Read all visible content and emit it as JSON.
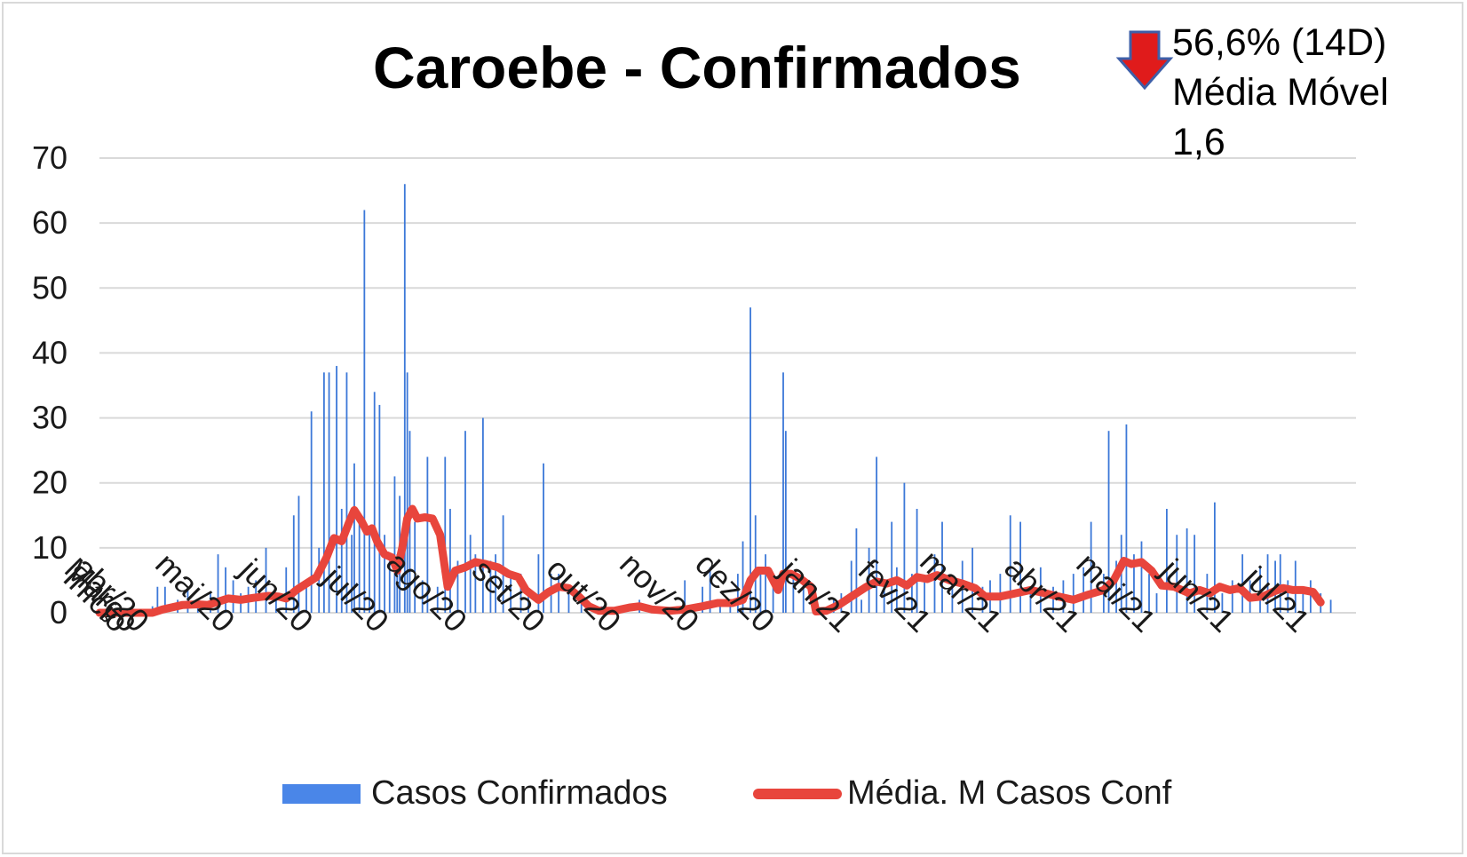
{
  "colors": {
    "bar": "#3c78d8",
    "line": "#e8453c",
    "grid": "#d9d9d9",
    "arrow_fill": "#e01b1b",
    "arrow_stroke": "#3e5fa8"
  },
  "chart_data": {
    "type": "bar+line",
    "title": "Caroebe - Confirmados",
    "annotation": {
      "arrow": "down-arrow",
      "lines": [
        "56,6% (14D)",
        "Média Móvel",
        "1,6"
      ]
    },
    "xlabel": "",
    "ylabel": "",
    "ylim": [
      0,
      70
    ],
    "yticks": [
      0,
      10,
      20,
      30,
      40,
      50,
      60,
      70
    ],
    "grid": true,
    "legend_position": "bottom",
    "x_start": "2020-03-20",
    "x_end": "2021-07-31",
    "x_ticks": [
      {
        "date": "2020-03-20",
        "label": "Início"
      },
      {
        "date": "2020-03-24",
        "label": "Março"
      },
      {
        "date": "2020-03-28",
        "label": "abr/20"
      },
      {
        "date": "2020-05-01",
        "label": "mai/20"
      },
      {
        "date": "2020-06-01",
        "label": "jun/20"
      },
      {
        "date": "2020-07-01",
        "label": "jul/20"
      },
      {
        "date": "2020-08-01",
        "label": "ago/20"
      },
      {
        "date": "2020-09-01",
        "label": "set/20"
      },
      {
        "date": "2020-10-01",
        "label": "out/20"
      },
      {
        "date": "2020-11-01",
        "label": "nov/20"
      },
      {
        "date": "2020-12-01",
        "label": "dez/20"
      },
      {
        "date": "2021-01-01",
        "label": "jan/21"
      },
      {
        "date": "2021-02-01",
        "label": "fev/21"
      },
      {
        "date": "2021-03-01",
        "label": "mar/21"
      },
      {
        "date": "2021-04-01",
        "label": "abr/21"
      },
      {
        "date": "2021-05-01",
        "label": "mai/21"
      },
      {
        "date": "2021-06-01",
        "label": "jun/21"
      },
      {
        "date": "2021-07-01",
        "label": "jul/21"
      }
    ],
    "series": [
      {
        "name": "Casos Confirmados",
        "type": "bar",
        "points": [
          [
            "2020-04-10",
            1
          ],
          [
            "2020-04-12",
            4
          ],
          [
            "2020-04-15",
            4
          ],
          [
            "2020-04-20",
            2
          ],
          [
            "2020-04-24",
            4
          ],
          [
            "2020-04-28",
            2
          ],
          [
            "2020-05-03",
            3
          ],
          [
            "2020-05-06",
            9
          ],
          [
            "2020-05-09",
            7
          ],
          [
            "2020-05-12",
            5
          ],
          [
            "2020-05-15",
            3
          ],
          [
            "2020-05-18",
            4
          ],
          [
            "2020-05-21",
            5
          ],
          [
            "2020-05-25",
            10
          ],
          [
            "2020-05-29",
            3
          ],
          [
            "2020-06-02",
            7
          ],
          [
            "2020-06-05",
            15
          ],
          [
            "2020-06-07",
            18
          ],
          [
            "2020-06-10",
            5
          ],
          [
            "2020-06-12",
            31
          ],
          [
            "2020-06-15",
            10
          ],
          [
            "2020-06-17",
            37
          ],
          [
            "2020-06-19",
            37
          ],
          [
            "2020-06-22",
            38
          ],
          [
            "2020-06-24",
            16
          ],
          [
            "2020-06-26",
            37
          ],
          [
            "2020-06-28",
            12
          ],
          [
            "2020-06-29",
            23
          ],
          [
            "2020-07-01",
            14
          ],
          [
            "2020-07-03",
            62
          ],
          [
            "2020-07-05",
            13
          ],
          [
            "2020-07-07",
            34
          ],
          [
            "2020-07-09",
            32
          ],
          [
            "2020-07-11",
            12
          ],
          [
            "2020-07-13",
            8
          ],
          [
            "2020-07-15",
            21
          ],
          [
            "2020-07-16",
            9
          ],
          [
            "2020-07-17",
            18
          ],
          [
            "2020-07-19",
            66
          ],
          [
            "2020-07-20",
            37
          ],
          [
            "2020-07-21",
            28
          ],
          [
            "2020-07-23",
            14
          ],
          [
            "2020-07-26",
            5
          ],
          [
            "2020-07-28",
            24
          ],
          [
            "2020-08-01",
            4
          ],
          [
            "2020-08-04",
            24
          ],
          [
            "2020-08-06",
            16
          ],
          [
            "2020-08-09",
            8
          ],
          [
            "2020-08-12",
            28
          ],
          [
            "2020-08-14",
            12
          ],
          [
            "2020-08-16",
            9
          ],
          [
            "2020-08-19",
            30
          ],
          [
            "2020-08-22",
            8
          ],
          [
            "2020-08-24",
            9
          ],
          [
            "2020-08-27",
            15
          ],
          [
            "2020-08-30",
            6
          ],
          [
            "2020-09-03",
            6
          ],
          [
            "2020-09-06",
            3
          ],
          [
            "2020-09-10",
            9
          ],
          [
            "2020-09-12",
            23
          ],
          [
            "2020-09-15",
            6
          ],
          [
            "2020-09-18",
            6
          ],
          [
            "2020-09-22",
            3
          ],
          [
            "2020-09-27",
            2
          ],
          [
            "2020-10-05",
            1
          ],
          [
            "2020-10-13",
            1
          ],
          [
            "2020-10-20",
            2
          ],
          [
            "2020-11-04",
            1
          ],
          [
            "2020-11-07",
            5
          ],
          [
            "2020-11-14",
            4
          ],
          [
            "2020-11-17",
            7
          ],
          [
            "2020-11-21",
            2
          ],
          [
            "2020-11-25",
            2
          ],
          [
            "2020-11-28",
            6
          ],
          [
            "2020-11-30",
            11
          ],
          [
            "2020-12-03",
            47
          ],
          [
            "2020-12-05",
            15
          ],
          [
            "2020-12-07",
            7
          ],
          [
            "2020-12-09",
            9
          ],
          [
            "2020-12-12",
            6
          ],
          [
            "2020-12-16",
            37
          ],
          [
            "2020-12-17",
            28
          ],
          [
            "2020-12-20",
            6
          ],
          [
            "2020-12-24",
            5
          ],
          [
            "2021-01-05",
            2
          ],
          [
            "2021-01-08",
            3
          ],
          [
            "2021-01-12",
            8
          ],
          [
            "2021-01-14",
            13
          ],
          [
            "2021-01-16",
            2
          ],
          [
            "2021-01-19",
            10
          ],
          [
            "2021-01-22",
            24
          ],
          [
            "2021-01-25",
            5
          ],
          [
            "2021-01-28",
            14
          ],
          [
            "2021-01-30",
            7
          ],
          [
            "2021-02-02",
            20
          ],
          [
            "2021-02-05",
            6
          ],
          [
            "2021-02-07",
            16
          ],
          [
            "2021-02-10",
            5
          ],
          [
            "2021-02-14",
            9
          ],
          [
            "2021-02-17",
            14
          ],
          [
            "2021-02-21",
            5
          ],
          [
            "2021-02-25",
            8
          ],
          [
            "2021-03-01",
            10
          ],
          [
            "2021-03-05",
            4
          ],
          [
            "2021-03-08",
            5
          ],
          [
            "2021-03-12",
            6
          ],
          [
            "2021-03-16",
            15
          ],
          [
            "2021-03-20",
            14
          ],
          [
            "2021-03-24",
            4
          ],
          [
            "2021-03-28",
            7
          ],
          [
            "2021-04-02",
            4
          ],
          [
            "2021-04-06",
            5
          ],
          [
            "2021-04-10",
            6
          ],
          [
            "2021-04-14",
            7
          ],
          [
            "2021-04-17",
            14
          ],
          [
            "2021-04-22",
            6
          ],
          [
            "2021-04-24",
            28
          ],
          [
            "2021-04-27",
            8
          ],
          [
            "2021-04-29",
            12
          ],
          [
            "2021-05-01",
            29
          ],
          [
            "2021-05-04",
            9
          ],
          [
            "2021-05-07",
            11
          ],
          [
            "2021-05-10",
            6
          ],
          [
            "2021-05-13",
            3
          ],
          [
            "2021-05-17",
            16
          ],
          [
            "2021-05-21",
            12
          ],
          [
            "2021-05-25",
            13
          ],
          [
            "2021-05-28",
            12
          ],
          [
            "2021-06-02",
            6
          ],
          [
            "2021-06-05",
            17
          ],
          [
            "2021-06-08",
            3
          ],
          [
            "2021-06-12",
            5
          ],
          [
            "2021-06-16",
            9
          ],
          [
            "2021-06-19",
            5
          ],
          [
            "2021-06-23",
            7
          ],
          [
            "2021-06-26",
            9
          ],
          [
            "2021-06-29",
            8
          ],
          [
            "2021-07-01",
            9
          ],
          [
            "2021-07-04",
            5
          ],
          [
            "2021-07-07",
            8
          ],
          [
            "2021-07-10",
            4
          ],
          [
            "2021-07-13",
            5
          ],
          [
            "2021-07-17",
            3
          ],
          [
            "2021-07-21",
            2
          ]
        ]
      },
      {
        "name": "Média. M Casos Conf",
        "type": "line",
        "points": [
          [
            "2020-03-20",
            0
          ],
          [
            "2020-04-10",
            0
          ],
          [
            "2020-04-14",
            0.5
          ],
          [
            "2020-04-22",
            1.2
          ],
          [
            "2020-04-28",
            1.3
          ],
          [
            "2020-05-02",
            1.2
          ],
          [
            "2020-05-06",
            1.7
          ],
          [
            "2020-05-10",
            2.2
          ],
          [
            "2020-05-15",
            2.0
          ],
          [
            "2020-05-20",
            2.3
          ],
          [
            "2020-05-26",
            2.6
          ],
          [
            "2020-05-30",
            2.5
          ],
          [
            "2020-06-02",
            2.2
          ],
          [
            "2020-06-06",
            3.5
          ],
          [
            "2020-06-10",
            4.5
          ],
          [
            "2020-06-14",
            5.5
          ],
          [
            "2020-06-18",
            8.5
          ],
          [
            "2020-06-21",
            11.5
          ],
          [
            "2020-06-24",
            11.0
          ],
          [
            "2020-06-27",
            14.0
          ],
          [
            "2020-06-29",
            15.8
          ],
          [
            "2020-07-02",
            14.0
          ],
          [
            "2020-07-04",
            12.5
          ],
          [
            "2020-07-06",
            13.0
          ],
          [
            "2020-07-08",
            11.0
          ],
          [
            "2020-07-11",
            9.0
          ],
          [
            "2020-07-14",
            8.5
          ],
          [
            "2020-07-16",
            6.5
          ],
          [
            "2020-07-18",
            10.0
          ],
          [
            "2020-07-20",
            14.5
          ],
          [
            "2020-07-22",
            16.0
          ],
          [
            "2020-07-24",
            14.5
          ],
          [
            "2020-07-27",
            14.7
          ],
          [
            "2020-07-30",
            14.5
          ],
          [
            "2020-08-02",
            12.0
          ],
          [
            "2020-08-05",
            4.0
          ],
          [
            "2020-08-08",
            6.5
          ],
          [
            "2020-08-12",
            7.0
          ],
          [
            "2020-08-16",
            7.8
          ],
          [
            "2020-08-20",
            7.5
          ],
          [
            "2020-08-25",
            7.0
          ],
          [
            "2020-08-29",
            6.0
          ],
          [
            "2020-09-02",
            5.5
          ],
          [
            "2020-09-05",
            3.5
          ],
          [
            "2020-09-10",
            2.0
          ],
          [
            "2020-09-14",
            3.2
          ],
          [
            "2020-09-18",
            4.0
          ],
          [
            "2020-09-22",
            3.8
          ],
          [
            "2020-09-26",
            2.5
          ],
          [
            "2020-09-30",
            1.0
          ],
          [
            "2020-10-04",
            0.3
          ],
          [
            "2020-10-10",
            0.3
          ],
          [
            "2020-10-16",
            0.8
          ],
          [
            "2020-10-20",
            1.0
          ],
          [
            "2020-10-25",
            0.5
          ],
          [
            "2020-11-01",
            0.3
          ],
          [
            "2020-11-07",
            0.5
          ],
          [
            "2020-11-14",
            1.0
          ],
          [
            "2020-11-20",
            1.5
          ],
          [
            "2020-11-26",
            1.5
          ],
          [
            "2020-11-30",
            2.0
          ],
          [
            "2020-12-03",
            5.0
          ],
          [
            "2020-12-06",
            6.5
          ],
          [
            "2020-12-10",
            6.5
          ],
          [
            "2020-12-14",
            3.5
          ],
          [
            "2020-12-16",
            6.0
          ],
          [
            "2020-12-19",
            6.0
          ],
          [
            "2020-12-23",
            5.2
          ],
          [
            "2020-12-27",
            4.0
          ],
          [
            "2020-12-29",
            0.2
          ],
          [
            "2021-01-02",
            0.3
          ],
          [
            "2021-01-07",
            1.2
          ],
          [
            "2021-01-12",
            2.5
          ],
          [
            "2021-01-18",
            4.0
          ],
          [
            "2021-01-22",
            4.8
          ],
          [
            "2021-01-26",
            4.5
          ],
          [
            "2021-01-30",
            5.0
          ],
          [
            "2021-02-03",
            4.2
          ],
          [
            "2021-02-07",
            5.5
          ],
          [
            "2021-02-11",
            5.2
          ],
          [
            "2021-02-15",
            5.8
          ],
          [
            "2021-02-20",
            5.0
          ],
          [
            "2021-02-25",
            4.5
          ],
          [
            "2021-03-02",
            3.8
          ],
          [
            "2021-03-06",
            2.5
          ],
          [
            "2021-03-12",
            2.5
          ],
          [
            "2021-03-18",
            3.0
          ],
          [
            "2021-03-24",
            3.5
          ],
          [
            "2021-03-30",
            3.0
          ],
          [
            "2021-04-04",
            2.5
          ],
          [
            "2021-04-10",
            2.0
          ],
          [
            "2021-04-16",
            2.8
          ],
          [
            "2021-04-22",
            3.5
          ],
          [
            "2021-04-26",
            5.0
          ],
          [
            "2021-04-30",
            8.0
          ],
          [
            "2021-05-03",
            7.5
          ],
          [
            "2021-05-07",
            7.8
          ],
          [
            "2021-05-11",
            6.5
          ],
          [
            "2021-05-15",
            4.2
          ],
          [
            "2021-05-20",
            4.0
          ],
          [
            "2021-05-26",
            3.0
          ],
          [
            "2021-05-30",
            3.5
          ],
          [
            "2021-06-03",
            3.0
          ],
          [
            "2021-06-07",
            4.0
          ],
          [
            "2021-06-11",
            3.5
          ],
          [
            "2021-06-15",
            3.8
          ],
          [
            "2021-06-19",
            2.3
          ],
          [
            "2021-06-24",
            2.5
          ],
          [
            "2021-06-28",
            3.2
          ],
          [
            "2021-07-02",
            3.8
          ],
          [
            "2021-07-06",
            3.5
          ],
          [
            "2021-07-10",
            3.5
          ],
          [
            "2021-07-14",
            3.2
          ],
          [
            "2021-07-17",
            1.6
          ]
        ]
      }
    ]
  }
}
